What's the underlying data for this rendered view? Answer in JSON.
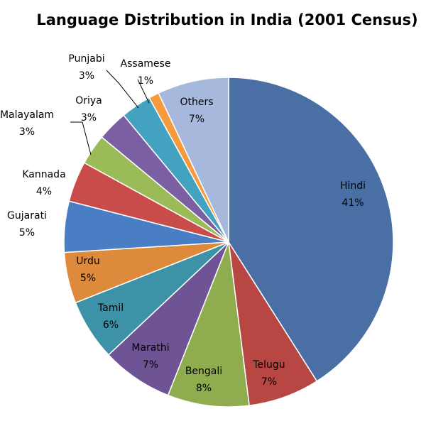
{
  "chart_data": {
    "type": "pie",
    "title": "Language Distribution in India (2001 Census)",
    "slices": [
      {
        "label": "Hindi",
        "pct_text": "41%",
        "value": 41,
        "color": "#4a6fa5"
      },
      {
        "label": "Telugu",
        "pct_text": "7%",
        "value": 7,
        "color": "#b84744"
      },
      {
        "label": "Bengali",
        "pct_text": "8%",
        "value": 8,
        "color": "#8fac4f"
      },
      {
        "label": "Marathi",
        "pct_text": "7%",
        "value": 7,
        "color": "#6e5494"
      },
      {
        "label": "Tamil",
        "pct_text": "6%",
        "value": 6,
        "color": "#3e92a8"
      },
      {
        "label": "Urdu",
        "pct_text": "5%",
        "value": 5,
        "color": "#dd8a3c"
      },
      {
        "label": "Gujarati",
        "pct_text": "5%",
        "value": 5,
        "color": "#4a7ec4"
      },
      {
        "label": "Kannada",
        "pct_text": "4%",
        "value": 4,
        "color": "#c84d4a"
      },
      {
        "label": "Malayalam",
        "pct_text": "3%",
        "value": 3,
        "color": "#9bbb59"
      },
      {
        "label": "Oriya",
        "pct_text": "3%",
        "value": 3,
        "color": "#7b5fa3"
      },
      {
        "label": "Punjabi",
        "pct_text": "3%",
        "value": 3,
        "color": "#43a2c0"
      },
      {
        "label": "Assamese",
        "pct_text": "1%",
        "value": 1,
        "color": "#f59a3f"
      },
      {
        "label": "Others",
        "pct_text": "7%",
        "value": 7,
        "color": "#a6b8db"
      }
    ]
  }
}
